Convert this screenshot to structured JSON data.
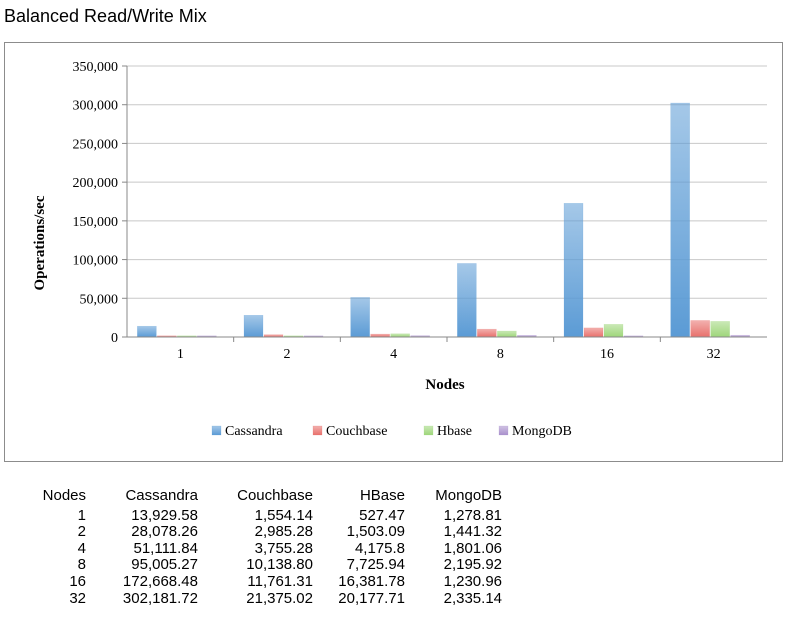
{
  "title": "Balanced Read/Write Mix",
  "chart_data": {
    "type": "bar",
    "categories": [
      "1",
      "2",
      "4",
      "8",
      "16",
      "32"
    ],
    "series": [
      {
        "name": "Cassandra",
        "values": [
          13929.58,
          28078.26,
          51111.84,
          95005.27,
          172668.48,
          302181.72
        ]
      },
      {
        "name": "Couchbase",
        "values": [
          1554.14,
          2985.28,
          3755.28,
          10138.8,
          11761.31,
          21375.02
        ]
      },
      {
        "name": "Hbase",
        "values": [
          527.47,
          1503.09,
          4175.8,
          7725.94,
          16381.78,
          20177.71
        ]
      },
      {
        "name": "MongoDB",
        "values": [
          1278.81,
          1441.32,
          1801.06,
          2195.92,
          1230.96,
          2335.14
        ]
      }
    ],
    "colors": [
      "#5b9bd5",
      "#e8706c",
      "#9ed67a",
      "#a990cc"
    ],
    "xlabel": "Nodes",
    "ylabel": "Operations/sec",
    "ylim": [
      0,
      350000
    ],
    "yticks": [
      0,
      50000,
      100000,
      150000,
      200000,
      250000,
      300000,
      350000
    ],
    "ytick_labels": [
      "0",
      "50,000",
      "100,000",
      "150,000",
      "200,000",
      "250,000",
      "300,000",
      "350,000"
    ],
    "legend": "bottom",
    "grid": true
  },
  "table": {
    "headers": [
      "Nodes",
      "Cassandra",
      "Couchbase",
      "HBase",
      "MongoDB"
    ],
    "rows": [
      [
        "1",
        "13,929.58",
        "1,554.14",
        "527.47",
        "1,278.81"
      ],
      [
        "2",
        "28,078.26",
        "2,985.28",
        "1,503.09",
        "1,441.32"
      ],
      [
        "4",
        "51,111.84",
        "3,755.28",
        "4,175.8",
        "1,801.06"
      ],
      [
        "8",
        "95,005.27",
        "10,138.80",
        "7,725.94",
        "2,195.92"
      ],
      [
        "16",
        "172,668.48",
        "11,761.31",
        "16,381.78",
        "1,230.96"
      ],
      [
        "32",
        "302,181.72",
        "21,375.02",
        "20,177.71",
        "2,335.14"
      ]
    ]
  }
}
